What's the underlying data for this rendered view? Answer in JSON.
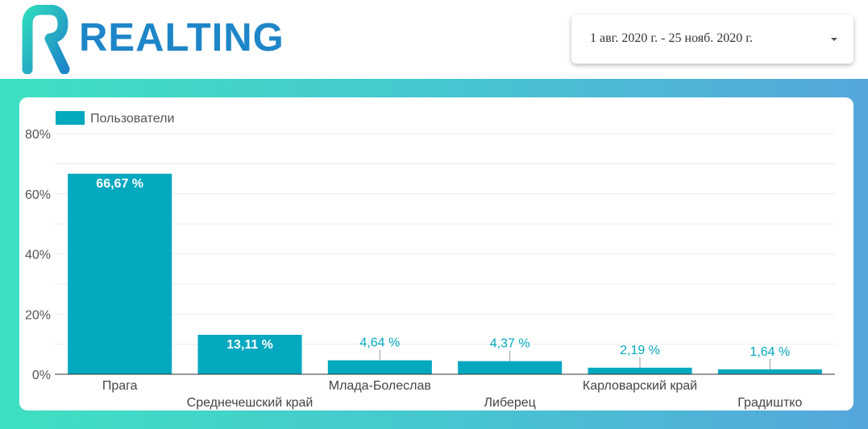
{
  "header": {
    "brand_name": "REALTING",
    "brand_color": "#1e86c8"
  },
  "date_range": {
    "value": "1 авг. 2020 г. - 25 нояб. 2020 г.",
    "icon": "chevron-down-icon"
  },
  "colors": {
    "bar": "#04a8bf",
    "background_gradient": [
      "#3ee0c2",
      "#55a6dc"
    ]
  },
  "chart_data": {
    "type": "bar",
    "legend": {
      "label": "Пользователи",
      "position": "top-left"
    },
    "categories": [
      "Прага",
      "Среднечешский край",
      "Млада-Болеслав",
      "Либерец",
      "Карловарский край",
      "Градиштко"
    ],
    "series": [
      {
        "name": "Пользователи",
        "values": [
          66.67,
          13.11,
          4.64,
          4.37,
          2.19,
          1.64
        ],
        "labels": [
          "66,67 %",
          "13,11 %",
          "4,64 %",
          "4,37 %",
          "2,19 %",
          "1,64 %"
        ]
      }
    ],
    "ylim": [
      0,
      80
    ],
    "yticks": [
      0,
      20,
      40,
      60,
      80
    ],
    "ytick_labels": [
      "0%",
      "20%",
      "40%",
      "60%",
      "80%"
    ],
    "grid": true
  }
}
